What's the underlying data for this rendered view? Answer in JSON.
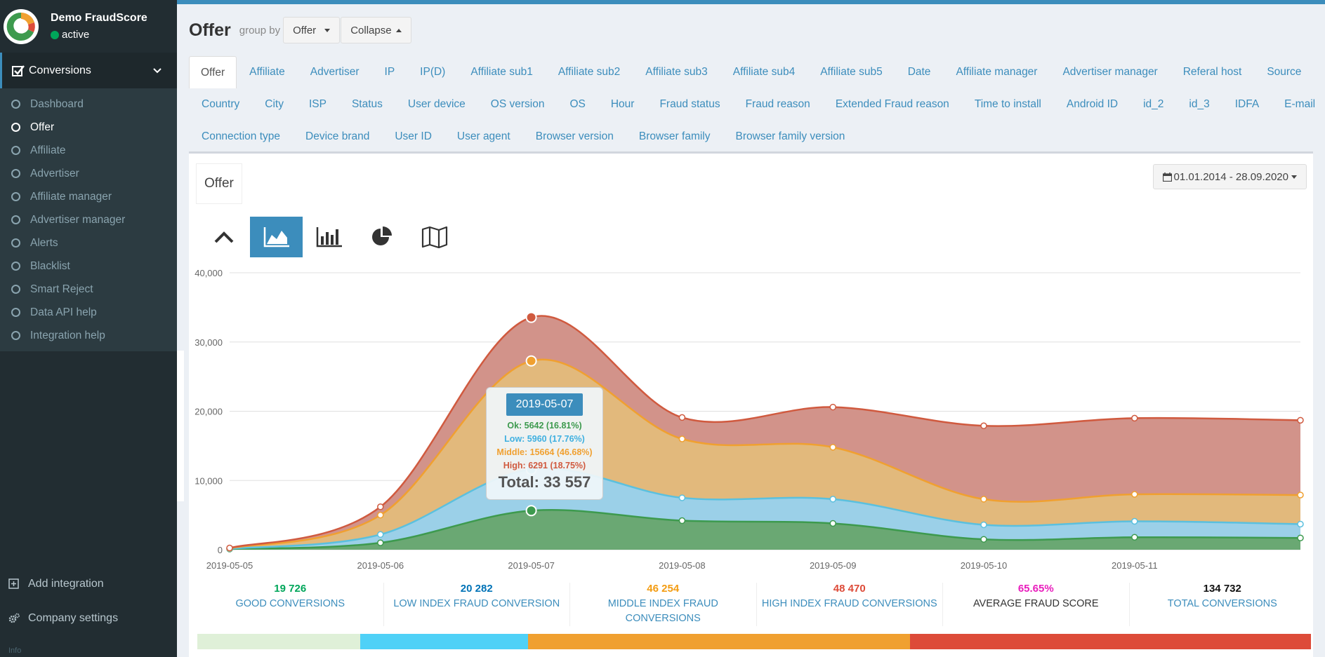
{
  "brand": {
    "name": "Demo FraudScore",
    "status": "active"
  },
  "sidebar": {
    "section": "Conversions",
    "items": [
      {
        "label": "Dashboard"
      },
      {
        "label": "Offer"
      },
      {
        "label": "Affiliate"
      },
      {
        "label": "Advertiser"
      },
      {
        "label": "Affiliate manager"
      },
      {
        "label": "Advertiser manager"
      },
      {
        "label": "Alerts"
      },
      {
        "label": "Blacklist"
      },
      {
        "label": "Smart Reject"
      },
      {
        "label": "Data API help"
      },
      {
        "label": "Integration help"
      }
    ],
    "add_integration": "Add integration",
    "company_settings": "Company settings",
    "info": "Info"
  },
  "header": {
    "title": "Offer",
    "group_by_label": "group by",
    "group_by_value": "Offer",
    "collapse_label": "Collapse"
  },
  "tabs": {
    "row1": [
      "Offer",
      "Affiliate",
      "Advertiser",
      "IP",
      "IP(D)",
      "Affiliate sub1",
      "Affiliate sub2",
      "Affiliate sub3",
      "Affiliate sub4",
      "Affiliate sub5",
      "Date",
      "Affiliate manager",
      "Advertiser manager",
      "Referal host",
      "Source"
    ],
    "row2": [
      "Country",
      "City",
      "ISP",
      "Status",
      "User device",
      "OS version",
      "OS",
      "Hour",
      "Fraud status",
      "Fraud reason",
      "Extended Fraud reason",
      "Time to install",
      "Android ID",
      "id_2",
      "id_3",
      "IDFA",
      "E-mail"
    ],
    "row3": [
      "Connection type",
      "Device brand",
      "User ID",
      "User agent",
      "Browser version",
      "Browser family",
      "Browser family version"
    ]
  },
  "box": {
    "title": "Offer",
    "date_range": "01.01.2014 - 28.09.2020"
  },
  "icons": [
    "chevron-up-icon",
    "area-chart-icon",
    "bar-chart-icon",
    "pie-chart-icon",
    "map-icon",
    "calendar-icon",
    "plus-square-icon",
    "cogs-icon"
  ],
  "colors": {
    "ok": "#3d9a4e",
    "low": "#5bc0de",
    "middle": "#f0a030",
    "high": "#d05a3f",
    "accent": "#3c8dbc"
  },
  "chart_data": {
    "type": "area",
    "stacked": true,
    "x": [
      "2019-05-05",
      "2019-05-06",
      "2019-05-07",
      "2019-05-08",
      "2019-05-09",
      "2019-05-10",
      "2019-05-11",
      "2019-05-12"
    ],
    "x_tick_labels": [
      "2019-05-05",
      "2019-05-06",
      "2019-05-07",
      "2019-05-08",
      "2019-05-09",
      "2019-05-10",
      "2019-05-11"
    ],
    "ylim": [
      0,
      40000
    ],
    "y_ticks": [
      "0",
      "10,000",
      "20,000",
      "30,000",
      "40,000"
    ],
    "grid": true,
    "series": [
      {
        "name": "Ok",
        "values": [
          100,
          1000,
          5642,
          4200,
          3800,
          1500,
          1800,
          1700
        ]
      },
      {
        "name": "Low",
        "values": [
          50,
          1200,
          5960,
          3300,
          3500,
          2100,
          2300,
          2000
        ]
      },
      {
        "name": "Middle",
        "values": [
          60,
          2800,
          15664,
          8500,
          7500,
          3700,
          3900,
          4200
        ]
      },
      {
        "name": "High",
        "values": [
          40,
          1200,
          6291,
          3100,
          5800,
          10600,
          11000,
          10800
        ]
      }
    ],
    "tooltip": {
      "date": "2019-05-07",
      "ok": "Ok: 5642 (16.81%)",
      "low": "Low: 5960 (17.76%)",
      "middle": "Middle: 15664 (46.68%)",
      "high": "High: 6291 (18.75%)",
      "total": "Total: 33 557"
    }
  },
  "stats": [
    {
      "value": "19 726",
      "label": "GOOD CONVERSIONS",
      "color": "#00a65a"
    },
    {
      "value": "20 282",
      "label": "LOW INDEX FRAUD CONVERSION",
      "color": "#0073b7"
    },
    {
      "value": "46 254",
      "label": "MIDDLE INDEX FRAUD CONVERSIONS",
      "color": "#f39c12"
    },
    {
      "value": "48 470",
      "label": "HIGH INDEX FRAUD CONVERSIONS",
      "color": "#dd4b39"
    },
    {
      "value": "65.65%",
      "label": "AVERAGE FRAUD SCORE",
      "color": "#e91ebd"
    },
    {
      "value": "134 732",
      "label": "TOTAL CONVERSIONS",
      "color": "#111111"
    }
  ],
  "progress": [
    {
      "share": 14.64,
      "color": "#dff0d8"
    },
    {
      "share": 15.05,
      "color": "#4fd1f7"
    },
    {
      "share": 34.33,
      "color": "#f0a030"
    },
    {
      "share": 35.98,
      "color": "#dd4b39"
    }
  ]
}
